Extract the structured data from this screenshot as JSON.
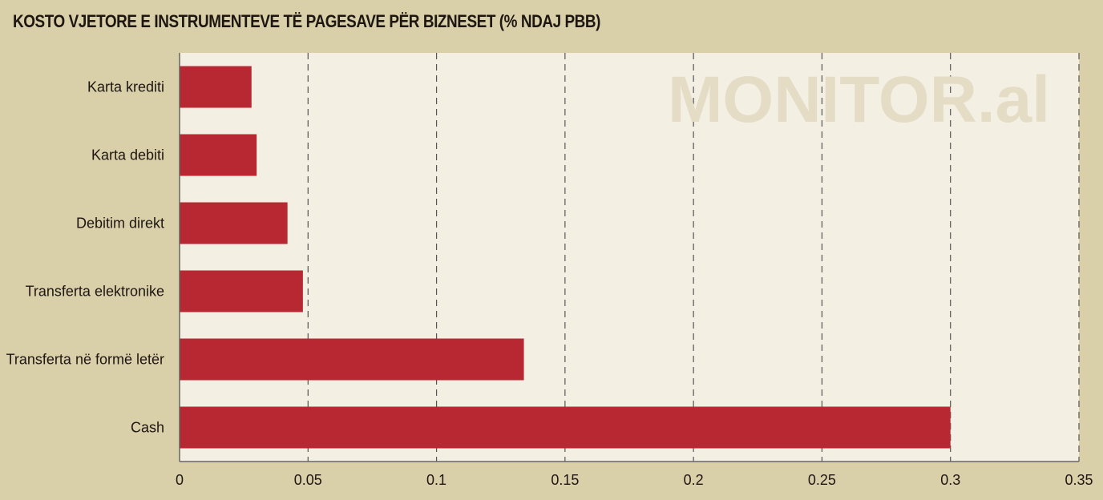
{
  "chart_data": {
    "type": "bar",
    "orientation": "horizontal",
    "title": "KOSTO VJETORE E INSTRUMENTEVE TË PAGESAVE PËR BIZNESET (% NDAJ PBB)",
    "categories": [
      "Karta krediti",
      "Karta debiti",
      "Debitim direkt",
      "Transferta elektronike",
      "Transferta në formë letër",
      "Cash"
    ],
    "values": [
      0.028,
      0.03,
      0.042,
      0.048,
      0.134,
      0.3
    ],
    "xlim": [
      0,
      0.35
    ],
    "xticks": [
      "0",
      "0.05",
      "0.1",
      "0.15",
      "0.2",
      "0.25",
      "0.3",
      "0.35"
    ],
    "xlabel": "",
    "ylabel": "",
    "grid": "vertical dashed",
    "watermark": "MONITOR.al",
    "colors": {
      "bar": "#b82832",
      "plot_background": "#f3efe3",
      "page_background": "#d9cfa9",
      "grid": "#555555",
      "text": "#1e1611"
    }
  }
}
